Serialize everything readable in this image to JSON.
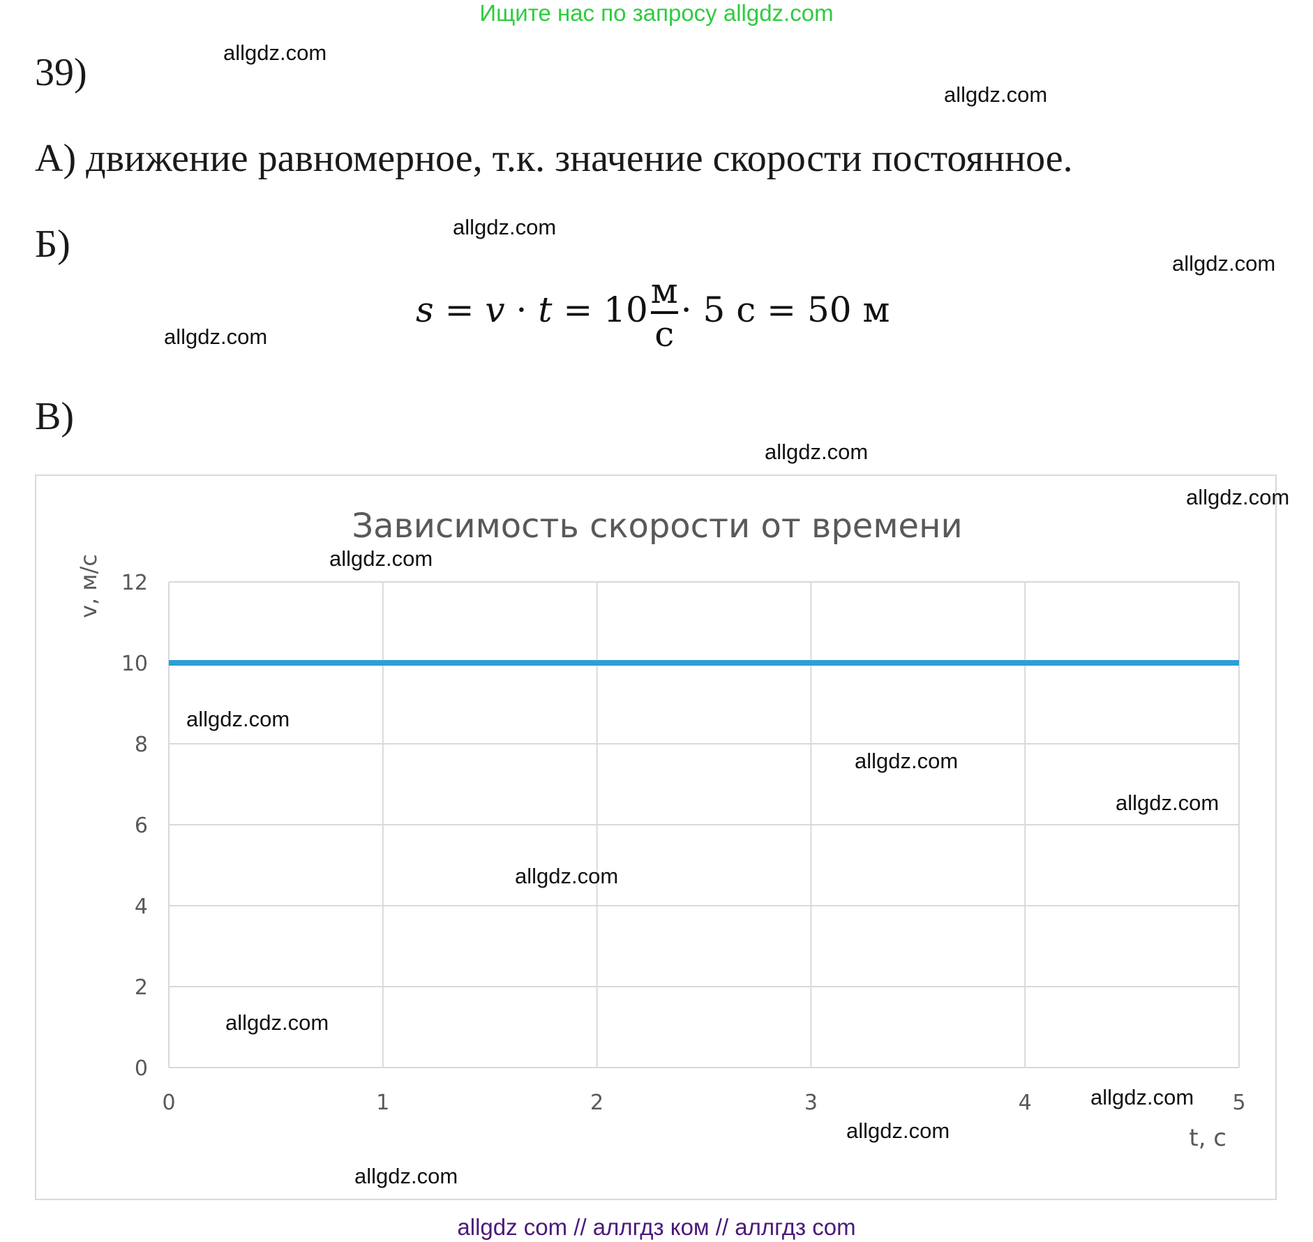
{
  "banner": {
    "text": "Ищите нас по запросу allgdz.com",
    "color": "#2ecc40"
  },
  "problem_number": "39)",
  "part_a": "А) движение равномерное, т.к. значение скорости постоянное.",
  "part_b": {
    "label": "Б)",
    "formula": {
      "s": "s",
      "eq1": "=",
      "v": "v",
      "dot1": "·",
      "t": "t",
      "eq2": "=",
      "n10": "10",
      "frac_num": "м",
      "frac_den": "с",
      "dot2": "·",
      "n5": "5 с",
      "eq3": "=",
      "result": "50 м"
    }
  },
  "part_c": {
    "label": "В)"
  },
  "watermark_text": "allgdz.com",
  "footer": {
    "text": "allgdz com  //  аллгдз ком  //  аллгдз com",
    "color": "#4b1a7a"
  },
  "chart_data": {
    "type": "line",
    "title": "Зависимость скорости от времени",
    "xlabel": "t, с",
    "ylabel": "v, м/с",
    "xlim": [
      0,
      5
    ],
    "ylim": [
      0,
      12
    ],
    "x_ticks": [
      "0",
      "1",
      "2",
      "3",
      "4",
      "5"
    ],
    "y_ticks": [
      "0",
      "2",
      "4",
      "6",
      "8",
      "10",
      "12"
    ],
    "grid": true,
    "series": [
      {
        "x": [
          0,
          1,
          2,
          3,
          4,
          5
        ],
        "y": [
          10,
          10,
          10,
          10,
          10,
          10
        ],
        "color": "#2a9fd8"
      }
    ]
  }
}
